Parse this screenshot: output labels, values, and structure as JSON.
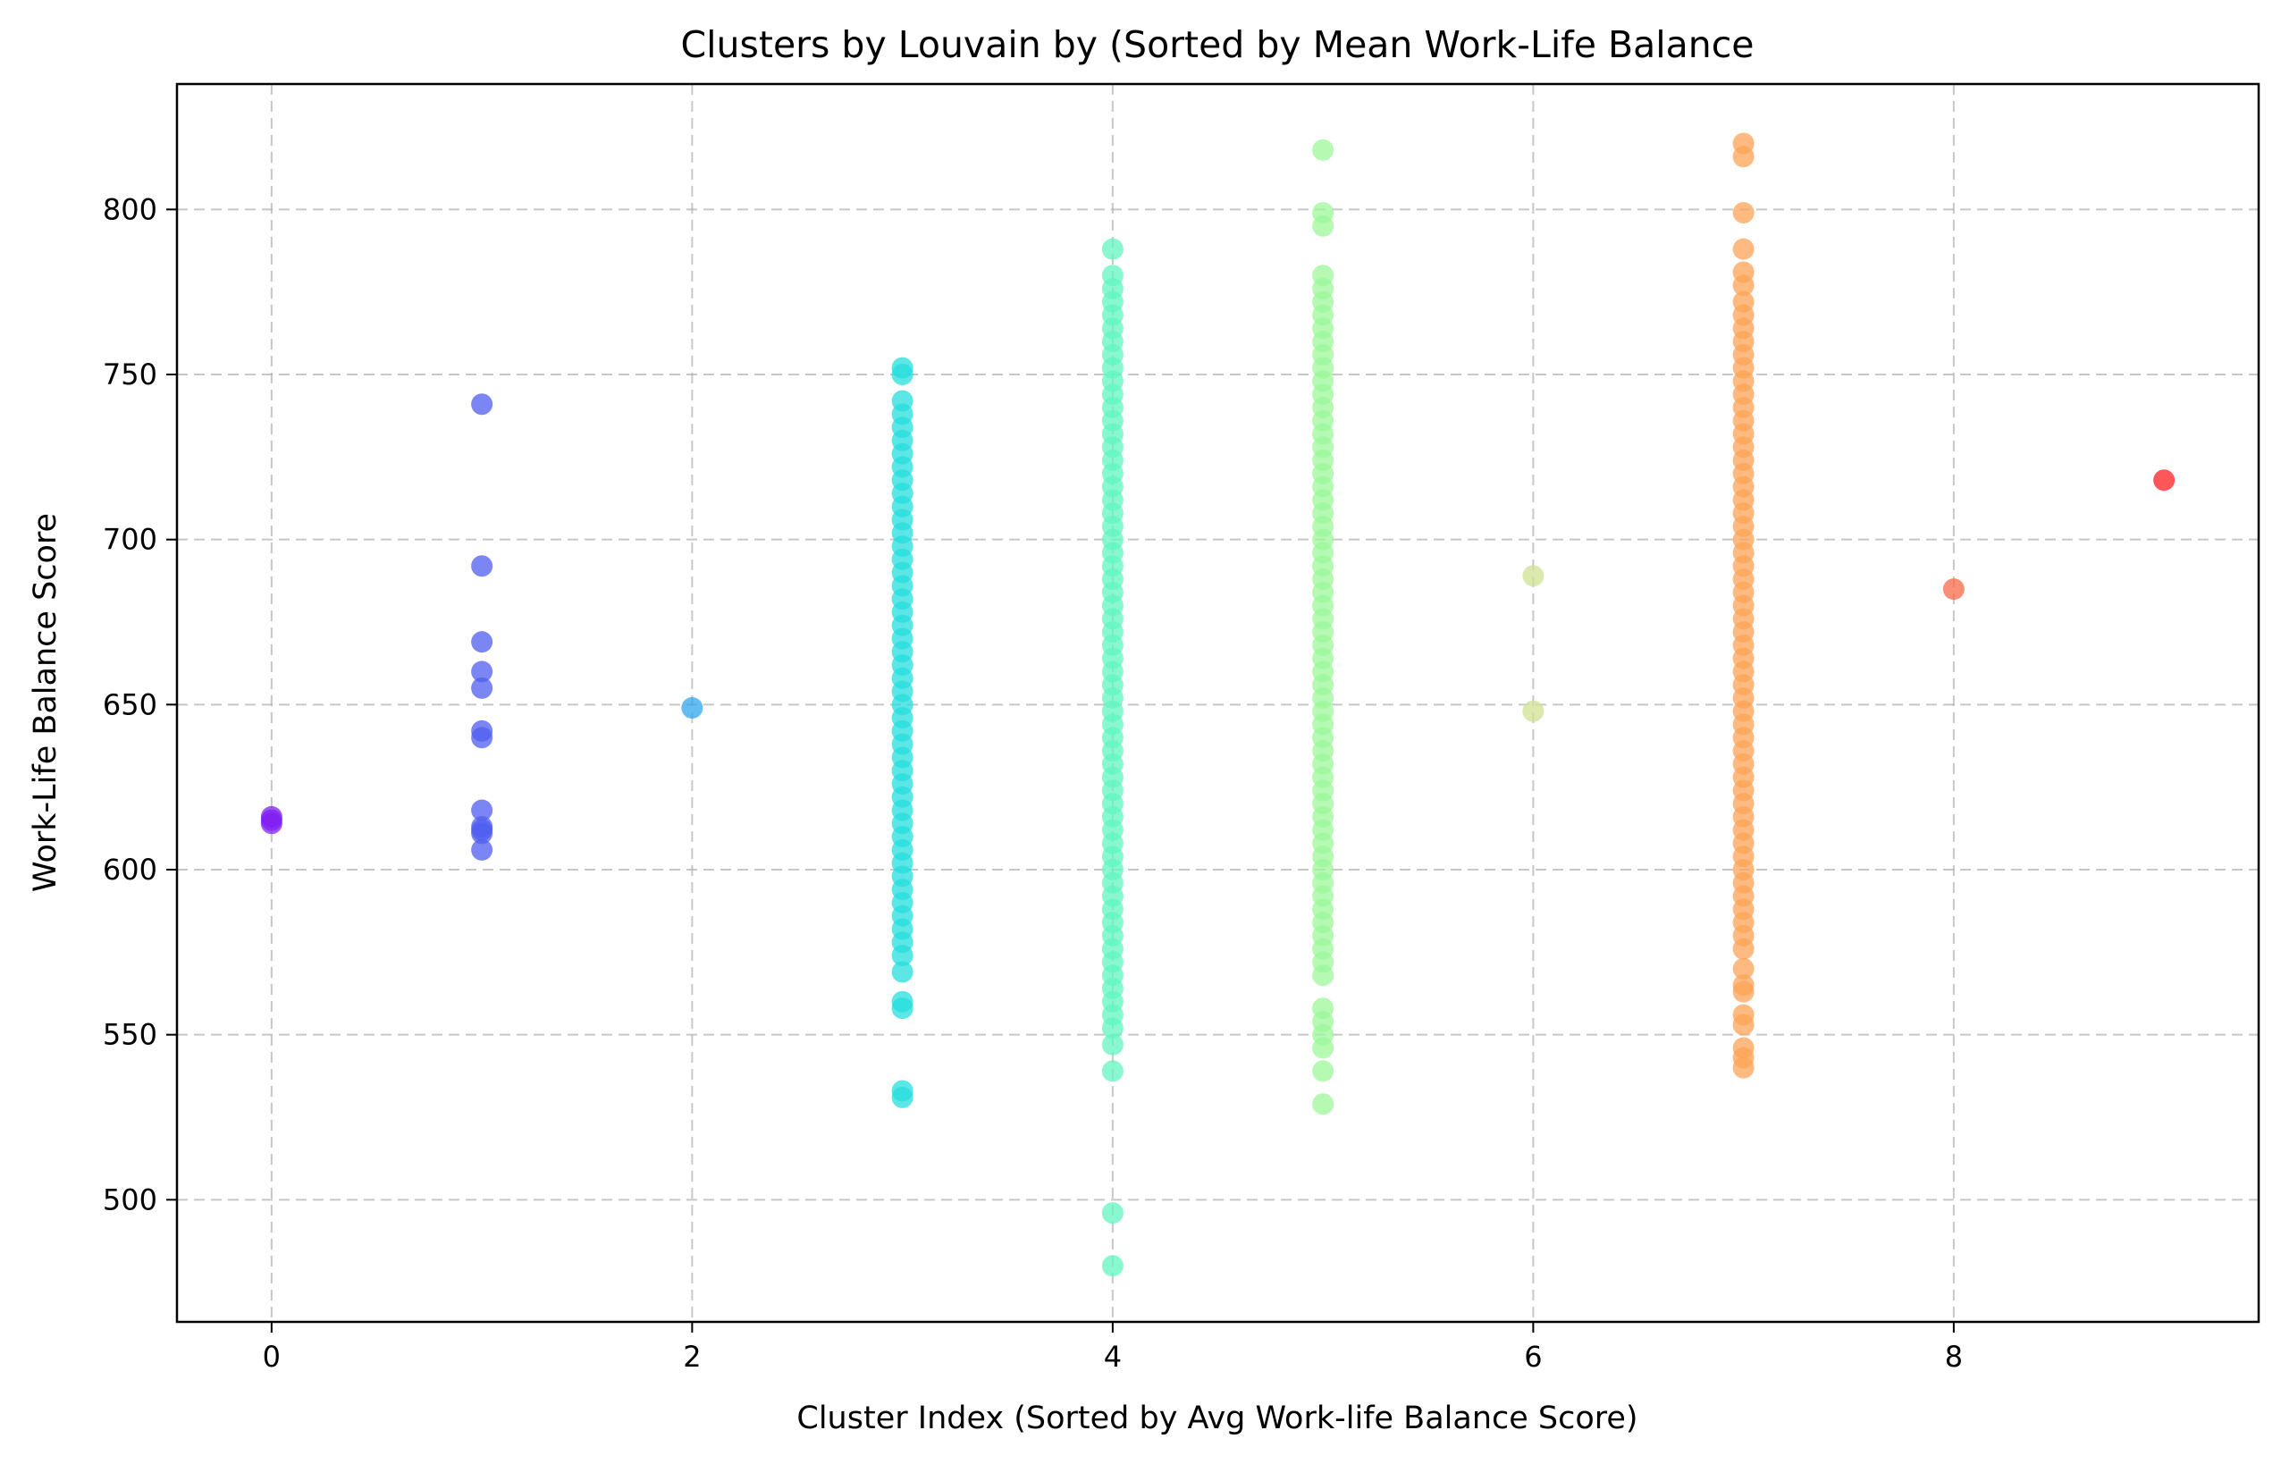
{
  "chart_data": {
    "type": "scatter",
    "title": "Clusters by Louvain by (Sorted by Mean Work-Life Balance",
    "xlabel": "Cluster Index (Sorted by Avg Work-life Balance Score)",
    "ylabel": "Work-Life Balance Score",
    "xlim": [
      -0.45,
      9.45
    ],
    "ylim": [
      463,
      838
    ],
    "xticks": [
      0,
      2,
      4,
      6,
      8
    ],
    "yticks": [
      500,
      550,
      600,
      650,
      700,
      750,
      800
    ],
    "grid": true,
    "legend": "none",
    "series": [
      {
        "x": 0,
        "color": "#7f1ff3",
        "y": [
          614,
          615,
          616
        ]
      },
      {
        "x": 1,
        "color": "#4f5ef0",
        "y": [
          741,
          692,
          669,
          660,
          655,
          642,
          640,
          618,
          613,
          612,
          611,
          606
        ]
      },
      {
        "x": 2,
        "color": "#2fa6ee",
        "y": [
          649
        ]
      },
      {
        "x": 3,
        "color": "#26dede",
        "y": [
          752,
          750,
          742,
          738,
          734,
          730,
          726,
          722,
          718,
          714,
          710,
          706,
          702,
          698,
          694,
          690,
          686,
          682,
          678,
          674,
          670,
          666,
          662,
          658,
          654,
          650,
          646,
          642,
          638,
          634,
          630,
          626,
          622,
          618,
          614,
          610,
          606,
          602,
          598,
          594,
          590,
          586,
          582,
          578,
          574,
          569,
          560,
          558,
          533,
          531
        ]
      },
      {
        "x": 4,
        "color": "#62f5c2",
        "y": [
          788,
          780,
          776,
          772,
          768,
          764,
          760,
          756,
          752,
          748,
          744,
          740,
          736,
          732,
          728,
          724,
          720,
          716,
          712,
          708,
          704,
          700,
          696,
          692,
          688,
          684,
          680,
          676,
          672,
          668,
          664,
          660,
          656,
          652,
          648,
          644,
          640,
          636,
          632,
          628,
          624,
          620,
          616,
          612,
          608,
          604,
          600,
          596,
          592,
          588,
          584,
          580,
          576,
          572,
          568,
          564,
          560,
          556,
          552,
          547,
          539,
          496,
          480
        ]
      },
      {
        "x": 5,
        "color": "#9cf79a",
        "y": [
          818,
          799,
          795,
          780,
          776,
          772,
          768,
          764,
          760,
          756,
          752,
          748,
          744,
          740,
          736,
          732,
          728,
          724,
          720,
          716,
          712,
          708,
          704,
          700,
          696,
          692,
          688,
          684,
          680,
          676,
          672,
          668,
          664,
          660,
          656,
          652,
          648,
          644,
          640,
          636,
          632,
          628,
          624,
          620,
          616,
          612,
          608,
          604,
          600,
          596,
          592,
          588,
          584,
          580,
          576,
          572,
          568,
          558,
          554,
          550,
          546,
          539,
          529
        ]
      },
      {
        "x": 6,
        "color": "#cfe292",
        "y": [
          689,
          648
        ]
      },
      {
        "x": 7,
        "color": "#fea356",
        "y": [
          820,
          816,
          799,
          788,
          781,
          777,
          772,
          768,
          764,
          760,
          756,
          752,
          748,
          744,
          740,
          736,
          732,
          728,
          724,
          720,
          716,
          712,
          708,
          704,
          700,
          696,
          692,
          688,
          684,
          680,
          676,
          672,
          668,
          664,
          660,
          656,
          652,
          648,
          644,
          640,
          636,
          632,
          628,
          624,
          620,
          616,
          612,
          608,
          604,
          600,
          596,
          592,
          588,
          584,
          580,
          576,
          570,
          565,
          563,
          556,
          553,
          546,
          543,
          540
        ]
      },
      {
        "x": 8,
        "color": "#f86a48",
        "y": [
          685
        ]
      },
      {
        "x": 9,
        "color": "#ff1f21",
        "y": [
          718
        ]
      }
    ]
  }
}
